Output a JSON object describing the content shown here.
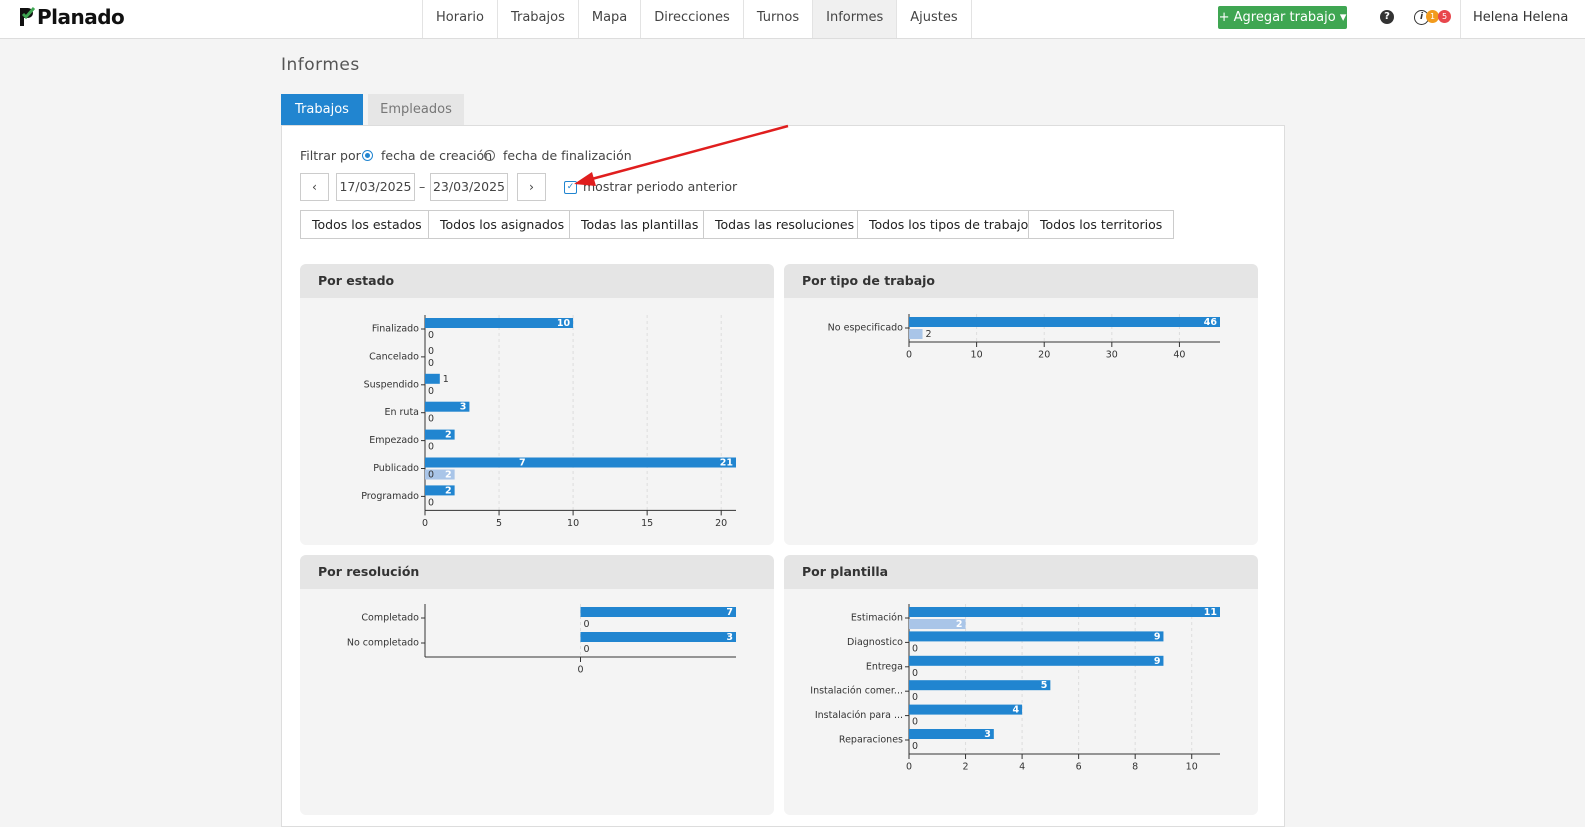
{
  "header": {
    "logo": "Planado",
    "nav": [
      "Horario",
      "Trabajos",
      "Mapa",
      "Direcciones",
      "Turnos",
      "Informes",
      "Ajustes"
    ],
    "add_job": "Agregar trabajo",
    "help": "?",
    "notifications": [
      1,
      5
    ],
    "user": "Helena Helena"
  },
  "page_title": "Informes",
  "tabs": [
    "Trabajos",
    "Empleados"
  ],
  "filter": {
    "label": "Filtrar por",
    "options": [
      "fecha de creación",
      "fecha de finalización"
    ],
    "date_from": "17/03/2025",
    "date_separator": "–",
    "date_to": "23/03/2025",
    "show_previous": "mostrar periodo anterior"
  },
  "filter_buttons": [
    "Todos los estados",
    "Todos los asignados",
    "Todas las plantillas",
    "Todas las resoluciones",
    "Todos los tipos de trabajo",
    "Todos los territorios"
  ],
  "chart_data": [
    {
      "type": "hbar",
      "title": "Por estado",
      "categories": [
        "Finalizado",
        "Cancelado",
        "Suspendido",
        "En ruta",
        "Empezado",
        "Publicado",
        "Programado"
      ],
      "series": [
        {
          "color": "#2185d0",
          "values": [
            10,
            0,
            1,
            3,
            2,
            21,
            2
          ],
          "overlay_values": [
            null,
            null,
            null,
            null,
            null,
            7,
            null
          ]
        },
        {
          "color": "#a9c5e8",
          "values": [
            0,
            0,
            0,
            0,
            0,
            2,
            0
          ],
          "overlay_values": [
            null,
            null,
            null,
            null,
            null,
            0,
            null
          ]
        }
      ],
      "xlim": [
        0,
        21
      ],
      "xticks": [
        0,
        5,
        10,
        15,
        20
      ],
      "grid": true
    },
    {
      "type": "hbar",
      "title": "Por tipo de trabajo",
      "categories": [
        "No especificado"
      ],
      "series": [
        {
          "color": "#2185d0",
          "values": [
            46
          ]
        },
        {
          "color": "#a9c5e8",
          "values": [
            2
          ]
        }
      ],
      "xlim": [
        0,
        46
      ],
      "xticks": [
        0,
        10,
        20,
        30,
        40
      ],
      "grid": true
    },
    {
      "type": "hbar",
      "title": "Por resolución",
      "categories": [
        "Completado",
        "No completado"
      ],
      "series": [
        {
          "color": "#2185d0",
          "values": [
            7,
            3
          ]
        },
        {
          "color": "#a9c5e8",
          "values": [
            0,
            0
          ]
        }
      ],
      "xlim": [
        -1,
        1
      ],
      "xticks": [
        0
      ],
      "grid": true
    },
    {
      "type": "hbar",
      "title": "Por plantilla",
      "categories": [
        "Estimación",
        "Diagnostico",
        "Entrega",
        "Instalación comer...",
        "Instalación para ...",
        "Reparaciones"
      ],
      "series": [
        {
          "color": "#2185d0",
          "values": [
            11,
            9,
            9,
            5,
            4,
            3
          ]
        },
        {
          "color": "#a9c5e8",
          "values": [
            2,
            0,
            0,
            0,
            0,
            0
          ]
        }
      ],
      "xlim": [
        0,
        11
      ],
      "xticks": [
        0,
        2,
        4,
        6,
        8,
        10
      ],
      "grid": true
    }
  ]
}
